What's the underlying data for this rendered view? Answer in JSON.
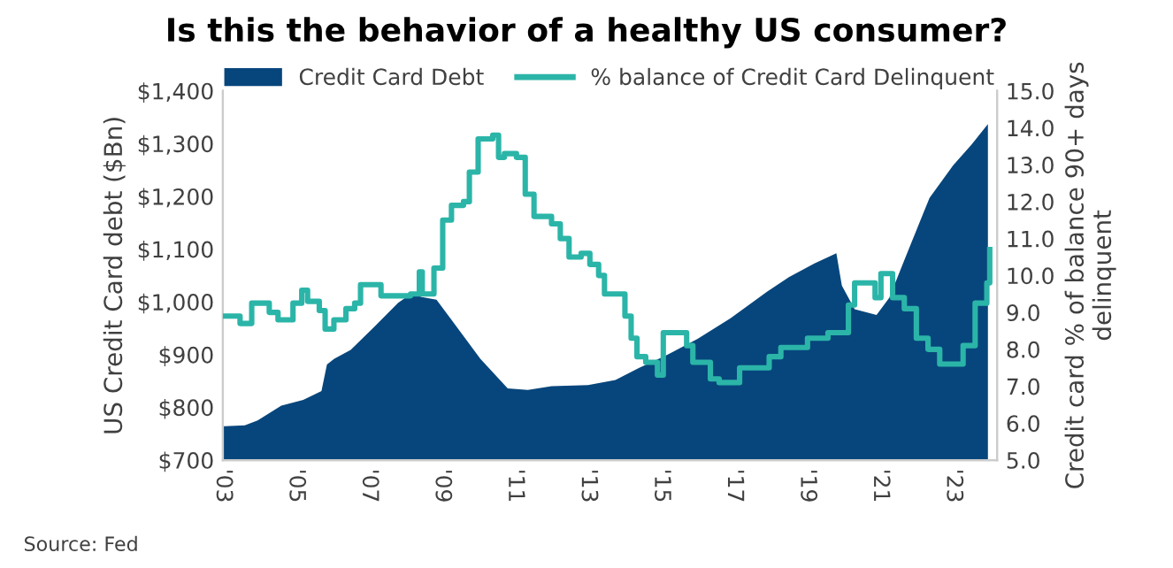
{
  "chart_data": {
    "type": "area",
    "title": "Is this the behavior of a healthy US consumer?",
    "ylabel": "US Credit Card debt ($Bn)",
    "y2label": "Credit card % of balance 90+ days delinquent",
    "annotations": [
      "Source: Fed"
    ],
    "xlim": [
      2003,
      2024.2
    ],
    "xticks": [
      {
        "value": 2003,
        "label": "'03"
      },
      {
        "value": 2005,
        "label": "'05"
      },
      {
        "value": 2007,
        "label": "'07"
      },
      {
        "value": 2009,
        "label": "'09"
      },
      {
        "value": 2011,
        "label": "'11"
      },
      {
        "value": 2013,
        "label": "'13"
      },
      {
        "value": 2015,
        "label": "'15"
      },
      {
        "value": 2017,
        "label": "'17"
      },
      {
        "value": 2019,
        "label": "'19"
      },
      {
        "value": 2021,
        "label": "'21"
      },
      {
        "value": 2023,
        "label": "'23"
      }
    ],
    "ylim": [
      700,
      1400
    ],
    "yticks": [
      {
        "value": 700,
        "label": "$700"
      },
      {
        "value": 800,
        "label": "$800"
      },
      {
        "value": 900,
        "label": "$900"
      },
      {
        "value": 1000,
        "label": "$1,000"
      },
      {
        "value": 1100,
        "label": "$1,100"
      },
      {
        "value": 1200,
        "label": "$1,200"
      },
      {
        "value": 1300,
        "label": "$1,300"
      },
      {
        "value": 1400,
        "label": "$1,400"
      }
    ],
    "y2lim": [
      5,
      15
    ],
    "y2ticks": [
      {
        "value": 5,
        "label": "5.0"
      },
      {
        "value": 6,
        "label": "6.0"
      },
      {
        "value": 7,
        "label": "7.0"
      },
      {
        "value": 8,
        "label": "8.0"
      },
      {
        "value": 9,
        "label": "9.0"
      },
      {
        "value": 10,
        "label": "10.0"
      },
      {
        "value": 11,
        "label": "11.0"
      },
      {
        "value": 12,
        "label": "12.0"
      },
      {
        "value": 13,
        "label": "13.0"
      },
      {
        "value": 14,
        "label": "14.0"
      },
      {
        "value": 15,
        "label": "15.0"
      }
    ],
    "legend": "top",
    "grid": false,
    "series": [
      {
        "name": "Credit Card Debt",
        "color": "#07467c",
        "x": [
          2003.0,
          2003.6,
          2003.95,
          2004.6,
          2005.2,
          2005.7,
          2005.85,
          2006.05,
          2006.5,
          2007.15,
          2007.8,
          2008.15,
          2008.45,
          2008.85,
          2009.4,
          2010.05,
          2010.8,
          2011.35,
          2012.0,
          2013.0,
          2013.75,
          2014.4,
          2015.1,
          2016.0,
          2016.9,
          2017.9,
          2018.5,
          2019.2,
          2019.8,
          2019.95,
          2020.3,
          2020.9,
          2021.25,
          2021.7,
          2022.35,
          2023.0,
          2023.5,
          2023.95
        ],
        "values": [
          764,
          766,
          775,
          803,
          814,
          831,
          881,
          892,
          909,
          953,
          998,
          1015,
          1009,
          1004,
          953,
          892,
          836,
          833,
          840,
          842,
          852,
          875,
          897,
          930,
          969,
          1019,
          1047,
          1073,
          1092,
          1031,
          986,
          975,
          1008,
          1086,
          1197,
          1259,
          1298,
          1337
        ]
      },
      {
        "name": "% balance of Credit Card Delinquent",
        "type": "step",
        "axis": "y2",
        "color": "#2bb5a8",
        "x": [
          2003.0,
          2003.47,
          2003.79,
          2004.27,
          2004.51,
          2004.92,
          2005.16,
          2005.32,
          2005.64,
          2005.8,
          2006.04,
          2006.37,
          2006.61,
          2006.77,
          2007.33,
          2008.14,
          2008.38,
          2008.46,
          2008.78,
          2009.02,
          2009.26,
          2009.59,
          2009.75,
          2009.99,
          2010.39,
          2010.55,
          2010.71,
          2011.04,
          2011.28,
          2011.52,
          2012.0,
          2012.24,
          2012.48,
          2012.81,
          2013.05,
          2013.29,
          2013.45,
          2014.01,
          2014.18,
          2014.34,
          2014.58,
          2014.9,
          2015.06,
          2015.7,
          2015.87,
          2016.35,
          2016.59,
          2017.15,
          2017.96,
          2018.28,
          2019.01,
          2019.57,
          2020.13,
          2020.3,
          2020.86,
          2021.02,
          2021.34,
          2021.66,
          2021.99,
          2022.31,
          2022.63,
          2023.27,
          2023.6,
          2023.92,
          2024.0
        ],
        "values": [
          8.9,
          8.7,
          9.25,
          9.0,
          8.8,
          9.25,
          9.6,
          9.3,
          9.05,
          8.55,
          8.8,
          9.1,
          9.25,
          9.75,
          9.45,
          9.5,
          10.1,
          9.5,
          10.2,
          11.5,
          11.9,
          12.0,
          12.8,
          13.7,
          13.8,
          13.2,
          13.3,
          13.2,
          12.2,
          11.6,
          11.4,
          11.0,
          10.5,
          10.6,
          10.3,
          10.0,
          9.5,
          8.9,
          8.3,
          7.8,
          7.65,
          7.3,
          8.45,
          8.1,
          7.65,
          7.2,
          7.1,
          7.5,
          7.8,
          8.05,
          8.3,
          8.45,
          9.2,
          9.8,
          9.4,
          10.05,
          9.4,
          9.1,
          8.3,
          8.0,
          7.6,
          8.1,
          9.25,
          9.8,
          10.7
        ]
      }
    ]
  }
}
